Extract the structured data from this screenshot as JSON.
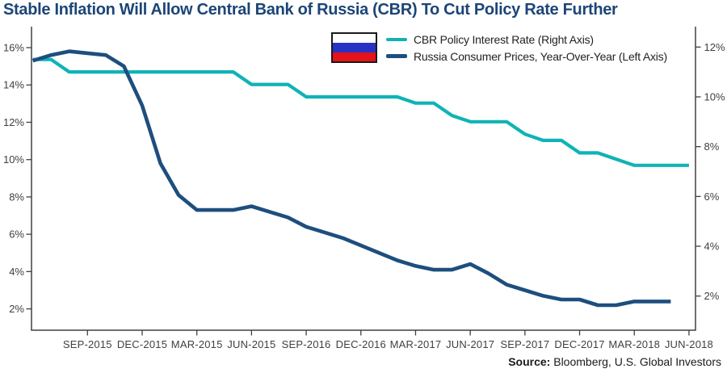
{
  "title": "Stable Inflation Will Allow Central Bank of Russia (CBR) To Cut Policy Rate Further",
  "colors": {
    "title": "#1c4577",
    "axis": "#404041",
    "tick_text": "#414042",
    "teal": "#0fb3b6",
    "navy": "#1d4e7e"
  },
  "legend": {
    "flag": {
      "name": "russia-flag",
      "stripes": [
        "#ffffff",
        "#2632c3",
        "#e41319"
      ],
      "border": "#1a1a1a"
    },
    "items": [
      {
        "label": "CBR Policy Interest Rate (Right Axis)",
        "color": "#0fb3b6"
      },
      {
        "label": "Russia Consumer Prices, Year-Over-Year (Left Axis)",
        "color": "#1d4e7e"
      }
    ]
  },
  "source": {
    "label": "Source:",
    "text": " Bloomberg, U.S. Global Investors"
  },
  "chart_data": {
    "type": "line",
    "title": "Stable Inflation Will Allow Central Bank of Russia (CBR) To Cut Policy Rate Further",
    "x_unit": "month",
    "x_start": "JUN-2015",
    "x_end": "JUN-2018",
    "x_tick_labels": [
      "SEP-2015",
      "DEC-2015",
      "MAR-2015",
      "JUN-2015",
      "SEP-2016",
      "DEC-2016",
      "MAR-2017",
      "JUN-2017",
      "SEP-2017",
      "DEC-2017",
      "MAR-2018",
      "JUN-2018"
    ],
    "left_axis": {
      "ticks": [
        2,
        4,
        6,
        8,
        10,
        12,
        14,
        16
      ],
      "suffix": "%",
      "ylim": [
        0.9,
        17.2
      ]
    },
    "right_axis": {
      "ticks": [
        2,
        4,
        6,
        8,
        10,
        12
      ],
      "suffix": "%",
      "ylim": [
        0.63,
        13.4
      ]
    },
    "grid": false,
    "legend_position": "top",
    "series": [
      {
        "name": "CBR Policy Interest Rate (Right Axis)",
        "axis": "right",
        "color": "#0fb3b6",
        "stroke_width": 4.2,
        "values": [
          11.5,
          11.5,
          11.0,
          11.0,
          11.0,
          11.0,
          11.0,
          11.0,
          11.0,
          11.0,
          11.0,
          11.0,
          10.5,
          10.5,
          10.5,
          10.0,
          10.0,
          10.0,
          10.0,
          10.0,
          10.0,
          9.75,
          9.75,
          9.25,
          9.0,
          9.0,
          9.0,
          8.5,
          8.25,
          8.25,
          7.75,
          7.75,
          7.5,
          7.25,
          7.25,
          7.25,
          7.25
        ]
      },
      {
        "name": "Russia Consumer Prices, Year-Over-Year (Left Axis)",
        "axis": "left",
        "color": "#1d4e7e",
        "stroke_width": 4.6,
        "values": [
          15.3,
          15.6,
          15.8,
          15.7,
          15.6,
          15.0,
          12.9,
          9.8,
          8.1,
          7.3,
          7.3,
          7.3,
          7.5,
          7.2,
          6.9,
          6.4,
          6.1,
          5.8,
          5.4,
          5.0,
          4.6,
          4.3,
          4.1,
          4.1,
          4.4,
          3.9,
          3.3,
          3.0,
          2.7,
          2.5,
          2.5,
          2.2,
          2.2,
          2.4,
          2.4,
          2.4
        ]
      }
    ]
  }
}
